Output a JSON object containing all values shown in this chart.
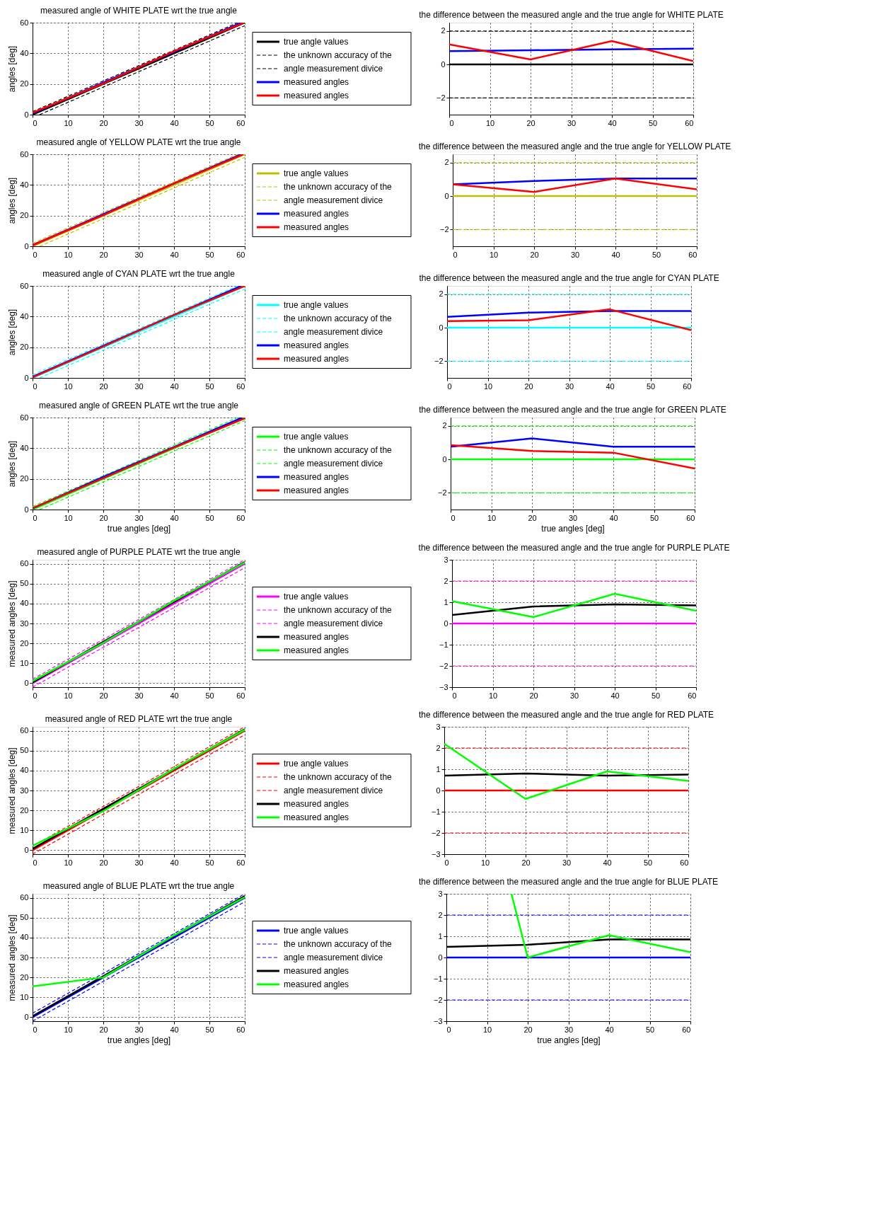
{
  "chart_data": [
    {
      "type": "line",
      "title": "measured angle of WHITE PLATE wrt the true angle",
      "ylabel": "angles [deg]",
      "x": [
        0,
        20,
        40,
        60
      ],
      "xlim": [
        0,
        60
      ],
      "ylim": [
        0,
        60
      ],
      "xticks": [
        0,
        10,
        20,
        30,
        40,
        50,
        60
      ],
      "yticks": [
        0,
        20,
        40,
        60
      ],
      "grid": true,
      "legend": "right",
      "series": [
        {
          "name": "true angle values",
          "color": "#000000",
          "values": [
            0,
            20,
            40,
            60
          ]
        },
        {
          "name": "the unknown accuracy of the",
          "color": "#000000",
          "line_style": "dashed",
          "x": [
            0,
            20,
            40,
            58
          ],
          "values": [
            2,
            22,
            42,
            60
          ]
        },
        {
          "name": "angle measurement divice",
          "color": "#000000",
          "line_style": "dashed",
          "x": [
            2,
            20,
            40,
            60
          ],
          "values": [
            0,
            18,
            38,
            58
          ]
        },
        {
          "name": "measured angles",
          "color": "#0000ff",
          "x": [
            0,
            20,
            40,
            59
          ],
          "values": [
            0.8,
            20.9,
            40.9,
            60
          ]
        },
        {
          "name": "measured angles",
          "color": "#ff0000",
          "x": [
            0,
            20,
            40,
            59.8
          ],
          "values": [
            1.2,
            20.3,
            41.4,
            60
          ]
        }
      ]
    },
    {
      "type": "line",
      "title": "the difference between the measured angle and the true angle for WHITE PLATE",
      "x": [
        0,
        20,
        40,
        60
      ],
      "xlim": [
        0,
        60
      ],
      "ylim": [
        -3,
        2.5
      ],
      "xticks": [
        0,
        10,
        20,
        30,
        40,
        50,
        60
      ],
      "yticks": [
        -2,
        0,
        2
      ],
      "grid": true,
      "series": [
        {
          "color": "#000000",
          "values": [
            0,
            0,
            0,
            0
          ]
        },
        {
          "color": "#000000",
          "line_style": "dashed",
          "values": [
            2,
            2,
            2,
            2
          ]
        },
        {
          "color": "#000000",
          "line_style": "dashed",
          "values": [
            -2,
            -2,
            -2,
            -2
          ]
        },
        {
          "color": "#0000ff",
          "values": [
            0.8,
            0.85,
            0.9,
            0.95
          ]
        },
        {
          "color": "#ff0000",
          "values": [
            1.2,
            0.3,
            1.4,
            0.2
          ]
        }
      ]
    },
    {
      "type": "line",
      "title": "measured angle of YELLOW PLATE wrt the true angle",
      "ylabel": "angles [deg]",
      "x": [
        0,
        20,
        40,
        60
      ],
      "xlim": [
        0,
        60
      ],
      "ylim": [
        0,
        60
      ],
      "xticks": [
        0,
        10,
        20,
        30,
        40,
        50,
        60
      ],
      "yticks": [
        0,
        20,
        40,
        60
      ],
      "grid": true,
      "legend": "right",
      "series": [
        {
          "name": "true angle values",
          "color": "#bfbf00",
          "values": [
            0,
            20,
            40,
            60
          ]
        },
        {
          "name": "the unknown accuracy of the",
          "color": "#bfbf00",
          "line_style": "dashed",
          "x": [
            0,
            20,
            40,
            58
          ],
          "values": [
            2,
            22,
            42,
            60
          ]
        },
        {
          "name": "angle measurement divice",
          "color": "#bfbf00",
          "line_style": "dashed",
          "x": [
            2,
            20,
            40,
            60
          ],
          "values": [
            0,
            18,
            38,
            58
          ]
        },
        {
          "name": "measured angles",
          "color": "#0000ff",
          "x": [
            0,
            20,
            40,
            59
          ],
          "values": [
            0.7,
            20.9,
            41,
            60
          ]
        },
        {
          "name": "measured angles",
          "color": "#ff0000",
          "x": [
            0,
            20,
            40,
            59.6
          ],
          "values": [
            0.7,
            20.3,
            41,
            60
          ]
        }
      ]
    },
    {
      "type": "line",
      "title": "the difference between the measured angle and the true angle for YELLOW PLATE",
      "x": [
        0,
        20,
        40,
        60
      ],
      "xlim": [
        0,
        60
      ],
      "ylim": [
        -3,
        2.5
      ],
      "xticks": [
        0,
        10,
        20,
        30,
        40,
        50,
        60
      ],
      "yticks": [
        -2,
        0,
        2
      ],
      "grid": true,
      "series": [
        {
          "color": "#bfbf00",
          "values": [
            0,
            0,
            0,
            0
          ]
        },
        {
          "color": "#bfbf00",
          "line_style": "dashed",
          "values": [
            2,
            2,
            2,
            2
          ]
        },
        {
          "color": "#bfbf00",
          "line_style": "dashed",
          "values": [
            -2,
            -2,
            -2,
            -2
          ]
        },
        {
          "color": "#0000ff",
          "values": [
            0.7,
            0.9,
            1.05,
            1.05
          ]
        },
        {
          "color": "#ff0000",
          "values": [
            0.7,
            0.25,
            1.05,
            0.4
          ]
        }
      ]
    },
    {
      "type": "line",
      "title": "measured angle of CYAN PLATE wrt the true angle",
      "ylabel": "angles [deg]",
      "x": [
        0,
        20,
        40,
        60
      ],
      "xlim": [
        0,
        60
      ],
      "ylim": [
        0,
        60
      ],
      "xticks": [
        0,
        10,
        20,
        30,
        40,
        50,
        60
      ],
      "yticks": [
        0,
        20,
        40,
        60
      ],
      "grid": true,
      "legend": "right",
      "series": [
        {
          "name": "true angle values",
          "color": "#00ffff",
          "values": [
            0,
            20,
            40,
            60
          ]
        },
        {
          "name": "the unknown accuracy of the",
          "color": "#00ffff",
          "line_style": "dashed",
          "x": [
            0,
            20,
            40,
            58
          ],
          "values": [
            2,
            22,
            42,
            60
          ]
        },
        {
          "name": "angle measurement divice",
          "color": "#00ffff",
          "line_style": "dashed",
          "x": [
            2,
            20,
            40,
            60
          ],
          "values": [
            0,
            18,
            38,
            58
          ]
        },
        {
          "name": "measured angles",
          "color": "#0000ff",
          "x": [
            0,
            20,
            40,
            59
          ],
          "values": [
            0.7,
            20.9,
            41,
            60
          ]
        },
        {
          "name": "measured angles",
          "color": "#ff0000",
          "values": [
            0.4,
            20.5,
            41.1,
            59.9
          ]
        }
      ]
    },
    {
      "type": "line",
      "title": "the difference between the measured angle and the true angle for CYAN PLATE",
      "x": [
        0,
        20,
        40,
        60
      ],
      "xlim": [
        0,
        60
      ],
      "ylim": [
        -3,
        2.5
      ],
      "xticks": [
        0,
        10,
        20,
        30,
        40,
        50,
        60
      ],
      "yticks": [
        -2,
        0,
        2
      ],
      "grid": true,
      "series": [
        {
          "color": "#00ffff",
          "values": [
            0,
            0,
            0,
            0
          ]
        },
        {
          "color": "#00ffff",
          "line_style": "dashed",
          "values": [
            2,
            2,
            2,
            2
          ]
        },
        {
          "color": "#00ffff",
          "line_style": "dashed",
          "values": [
            -2,
            -2,
            -2,
            -2
          ]
        },
        {
          "color": "#0000ff",
          "values": [
            0.65,
            0.9,
            1,
            1
          ]
        },
        {
          "color": "#ff0000",
          "values": [
            0.4,
            0.45,
            1.1,
            -0.15
          ]
        }
      ]
    },
    {
      "type": "line",
      "title": "measured angle of GREEN PLATE wrt the true angle",
      "xlabel": "true angles [deg]",
      "ylabel": "angles [deg]",
      "x": [
        0,
        20,
        40,
        60
      ],
      "xlim": [
        0,
        60
      ],
      "ylim": [
        0,
        60
      ],
      "xticks": [
        0,
        10,
        20,
        30,
        40,
        50,
        60
      ],
      "yticks": [
        0,
        20,
        40,
        60
      ],
      "grid": true,
      "legend": "right",
      "series": [
        {
          "name": "true angle values",
          "color": "#00ff00",
          "values": [
            0,
            20,
            40,
            60
          ]
        },
        {
          "name": "the unknown accuracy of the",
          "color": "#00ff00",
          "line_style": "dashed",
          "x": [
            0,
            20,
            40,
            58
          ],
          "values": [
            2,
            22,
            42,
            60
          ]
        },
        {
          "name": "angle measurement divice",
          "color": "#00ff00",
          "line_style": "dashed",
          "x": [
            2,
            20,
            40,
            60
          ],
          "values": [
            0,
            18,
            38,
            58
          ]
        },
        {
          "name": "measured angles",
          "color": "#0000ff",
          "x": [
            0,
            20,
            40,
            59.3
          ],
          "values": [
            0.8,
            21.3,
            40.8,
            60
          ]
        },
        {
          "name": "measured angles",
          "color": "#ff0000",
          "values": [
            0.9,
            20.5,
            40.4,
            59.5
          ]
        }
      ]
    },
    {
      "type": "line",
      "title": "the difference between the measured angle and the true angle for GREEN PLATE",
      "xlabel": "true angles [deg]",
      "x": [
        0,
        20,
        40,
        60
      ],
      "xlim": [
        0,
        60
      ],
      "ylim": [
        -3,
        2.5
      ],
      "xticks": [
        0,
        10,
        20,
        30,
        40,
        50,
        60
      ],
      "yticks": [
        -2,
        0,
        2
      ],
      "grid": true,
      "series": [
        {
          "color": "#00ff00",
          "values": [
            0,
            0,
            0,
            0
          ]
        },
        {
          "color": "#00ff00",
          "line_style": "dashed",
          "values": [
            2,
            2,
            2,
            2
          ]
        },
        {
          "color": "#00ff00",
          "line_style": "dashed",
          "values": [
            -2,
            -2,
            -2,
            -2
          ]
        },
        {
          "color": "#0000ff",
          "values": [
            0.75,
            1.25,
            0.75,
            0.75
          ]
        },
        {
          "color": "#ff0000",
          "values": [
            0.85,
            0.5,
            0.4,
            -0.55
          ]
        }
      ]
    },
    {
      "type": "line",
      "title": "measured angle of PURPLE PLATE wrt the true angle",
      "ylabel": "measured angles [deg]",
      "x": [
        0,
        20,
        40,
        60
      ],
      "xlim": [
        0,
        60
      ],
      "ylim": [
        -2,
        62
      ],
      "xticks": [
        0,
        10,
        20,
        30,
        40,
        50,
        60
      ],
      "yticks": [
        0,
        10,
        20,
        30,
        40,
        50,
        60
      ],
      "grid": true,
      "legend": "right",
      "series": [
        {
          "name": "true angle values",
          "color": "#ff00ff",
          "values": [
            0,
            20,
            40,
            60
          ]
        },
        {
          "name": "the unknown accuracy of the",
          "color": "#ff00ff",
          "line_style": "dashed",
          "values": [
            2,
            22,
            42,
            62
          ]
        },
        {
          "name": "angle measurement divice",
          "color": "#ff00ff",
          "line_style": "dashed",
          "values": [
            -2,
            18,
            38,
            58
          ]
        },
        {
          "name": "measured angles",
          "color": "#000000",
          "values": [
            0.4,
            20.8,
            40.9,
            60.9
          ]
        },
        {
          "name": "measured angles",
          "color": "#00ff00",
          "values": [
            1.1,
            20.3,
            41.4,
            60.6
          ]
        }
      ]
    },
    {
      "type": "line",
      "title": "the difference between the measured angle and the true angle for PURPLE PLATE",
      "x": [
        0,
        20,
        40,
        60
      ],
      "xlim": [
        0,
        60
      ],
      "ylim": [
        -3,
        3
      ],
      "xticks": [
        0,
        10,
        20,
        30,
        40,
        50,
        60
      ],
      "yticks": [
        -3,
        -2,
        -1,
        0,
        1,
        2,
        3
      ],
      "grid": true,
      "series": [
        {
          "color": "#ff00ff",
          "values": [
            0,
            0,
            0,
            0
          ]
        },
        {
          "color": "#ff00ff",
          "line_style": "dashed",
          "values": [
            2,
            2,
            2,
            2
          ]
        },
        {
          "color": "#ff00ff",
          "line_style": "dashed",
          "values": [
            -2,
            -2,
            -2,
            -2
          ]
        },
        {
          "color": "#000000",
          "values": [
            0.4,
            0.8,
            0.9,
            0.85
          ]
        },
        {
          "color": "#00ff00",
          "values": [
            1.05,
            0.3,
            1.4,
            0.6
          ]
        }
      ]
    },
    {
      "type": "line",
      "title": "measured angle of RED PLATE wrt the true angle",
      "ylabel": "measured angles [deg]",
      "x": [
        0,
        20,
        40,
        60
      ],
      "xlim": [
        0,
        60
      ],
      "ylim": [
        -2,
        62
      ],
      "xticks": [
        0,
        10,
        20,
        30,
        40,
        50,
        60
      ],
      "yticks": [
        0,
        10,
        20,
        30,
        40,
        50,
        60
      ],
      "grid": true,
      "legend": "right",
      "series": [
        {
          "name": "true angle values",
          "color": "#ff0000",
          "values": [
            0,
            20,
            40,
            60
          ]
        },
        {
          "name": "the unknown accuracy of the",
          "color": "#ff0000",
          "line_style": "dashed",
          "values": [
            2,
            22,
            42,
            62
          ]
        },
        {
          "name": "angle measurement divice",
          "color": "#ff0000",
          "line_style": "dashed",
          "values": [
            -2,
            18,
            38,
            58
          ]
        },
        {
          "name": "measured angles",
          "color": "#000000",
          "values": [
            0.7,
            20.8,
            40.7,
            60.8
          ]
        },
        {
          "name": "measured angles",
          "color": "#00ff00",
          "values": [
            2.2,
            19.6,
            40.9,
            60.5
          ]
        }
      ]
    },
    {
      "type": "line",
      "title": "the difference between the measured angle and the true angle for RED PLATE",
      "x": [
        0,
        20,
        40,
        60
      ],
      "xlim": [
        0,
        60
      ],
      "ylim": [
        -3,
        3
      ],
      "xticks": [
        0,
        10,
        20,
        30,
        40,
        50,
        60
      ],
      "yticks": [
        -3,
        -2,
        -1,
        0,
        1,
        2,
        3
      ],
      "grid": true,
      "series": [
        {
          "color": "#ff0000",
          "values": [
            0,
            0,
            0,
            0
          ]
        },
        {
          "color": "#ff0000",
          "line_style": "dashed",
          "values": [
            2,
            2,
            2,
            2
          ]
        },
        {
          "color": "#ff0000",
          "line_style": "dashed",
          "values": [
            -2,
            -2,
            -2,
            -2
          ]
        },
        {
          "color": "#000000",
          "values": [
            0.7,
            0.8,
            0.7,
            0.75
          ]
        },
        {
          "color": "#00ff00",
          "values": [
            2.2,
            -0.4,
            0.9,
            0.45
          ]
        }
      ]
    },
    {
      "type": "line",
      "title": "measured angle of BLUE PLATE wrt the true angle",
      "xlabel": "true angles [deg]",
      "ylabel": "measured angles [deg]",
      "x": [
        0,
        20,
        40,
        60
      ],
      "xlim": [
        0,
        60
      ],
      "ylim": [
        -2,
        62
      ],
      "xticks": [
        0,
        10,
        20,
        30,
        40,
        50,
        60
      ],
      "yticks": [
        0,
        10,
        20,
        30,
        40,
        50,
        60
      ],
      "grid": true,
      "legend": "right",
      "series": [
        {
          "name": "true angle values",
          "color": "#0000ff",
          "values": [
            0,
            20,
            40,
            60
          ]
        },
        {
          "name": "the unknown accuracy of the",
          "color": "#0000ff",
          "line_style": "dashed",
          "values": [
            2,
            22,
            42,
            62
          ]
        },
        {
          "name": "angle measurement divice",
          "color": "#0000ff",
          "line_style": "dashed",
          "values": [
            -2,
            18,
            38,
            58
          ]
        },
        {
          "name": "measured angles",
          "color": "#000000",
          "values": [
            0.5,
            20.6,
            40.9,
            60.9
          ]
        },
        {
          "name": "measured angles",
          "color": "#00ff00",
          "values": [
            15.5,
            20,
            41.1,
            60.3
          ]
        }
      ]
    },
    {
      "type": "line",
      "title": "the difference between the measured angle and the true angle for BLUE PLATE",
      "xlabel": "true angles [deg]",
      "x": [
        0,
        20,
        40,
        60
      ],
      "xlim": [
        0,
        60
      ],
      "ylim": [
        -3,
        3
      ],
      "xticks": [
        0,
        10,
        20,
        30,
        40,
        50,
        60
      ],
      "yticks": [
        -3,
        -2,
        -1,
        0,
        1,
        2,
        3
      ],
      "grid": true,
      "series": [
        {
          "color": "#0000ff",
          "values": [
            0,
            0,
            0,
            0
          ]
        },
        {
          "color": "#0000ff",
          "line_style": "dashed",
          "values": [
            2,
            2,
            2,
            2
          ]
        },
        {
          "color": "#0000ff",
          "line_style": "dashed",
          "values": [
            -2,
            -2,
            -2,
            -2
          ]
        },
        {
          "color": "#000000",
          "values": [
            0.5,
            0.6,
            0.85,
            0.85
          ]
        },
        {
          "color": "#00ff00",
          "x": [
            16,
            20,
            40,
            60
          ],
          "values": [
            3,
            0,
            1.05,
            0.25
          ]
        }
      ]
    }
  ]
}
